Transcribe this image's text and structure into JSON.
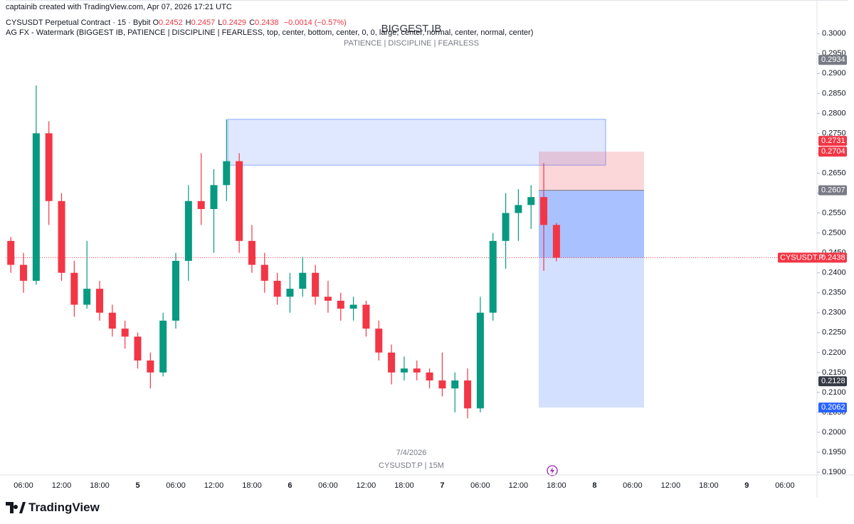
{
  "header": {
    "credit": "captainib created with TradingView.com, Apr 07, 2026 17:21 UTC"
  },
  "legend": {
    "symbol": "CYSUSDT Perpetual Contract · 15 · Bybit",
    "fields": [
      {
        "key": "O",
        "text": "0.2452"
      },
      {
        "key": "H",
        "text": "0.2457"
      },
      {
        "key": "L",
        "text": "0.2429"
      },
      {
        "key": "C",
        "text": "0.2438"
      }
    ],
    "change": "−0.0014 (−0.57%)",
    "indicator": "AG FX - Watermark (BIGGEST IB, PATIENCE  |  DISCIPLINE  |  FEARLESS, top, center, bottom, center, 0, 0, large, center, normal, center, normal, center)"
  },
  "watermark": {
    "title": "BIGGEST IB",
    "subtitle": "PATIENCE  |  DISCIPLINE  |  FEARLESS",
    "date": "7/4/2026",
    "symbol": "CYSUSDT.P | 15M"
  },
  "footer": {
    "brand": "TradingView"
  },
  "chart_data": {
    "type": "candlestick",
    "categories": [
      null,
      "06:00",
      null,
      null,
      "12:00",
      null,
      null,
      "18:00",
      null,
      null,
      "5",
      null,
      null,
      "06:00",
      null,
      null,
      "12:00",
      null,
      null,
      "18:00",
      null,
      null,
      "6",
      null,
      null,
      "06:00",
      null,
      null,
      "12:00",
      null,
      null,
      "18:00",
      null,
      null,
      "7",
      null,
      null,
      "06:00",
      null,
      null,
      "12:00",
      null,
      null,
      "18:00",
      null,
      null,
      "8",
      null,
      null,
      "06:00",
      null,
      null,
      "12:00",
      null,
      null,
      "18:00",
      null,
      null,
      "9",
      null,
      null,
      "06:00"
    ],
    "open": [
      0.248,
      0.242,
      0.238,
      0.275,
      0.258,
      0.24,
      0.232,
      0.236,
      0.23,
      0.226,
      0.224,
      0.218,
      0.215,
      0.228,
      0.243,
      0.258,
      0.256,
      0.262,
      0.268,
      0.248,
      0.242,
      0.238,
      0.234,
      0.236,
      0.24,
      0.234,
      0.233,
      0.231,
      0.232,
      0.226,
      0.22,
      0.215,
      0.216,
      0.215,
      0.213,
      0.211,
      0.213,
      0.206,
      0.23,
      0.248,
      0.255,
      0.257,
      0.259,
      0.252,
      null,
      null,
      null,
      null,
      null,
      null,
      null,
      null,
      null,
      null,
      null,
      null,
      null,
      null,
      null,
      null,
      null,
      null
    ],
    "high": [
      0.249,
      0.245,
      0.287,
      0.278,
      0.26,
      0.243,
      0.248,
      0.238,
      0.232,
      0.228,
      0.225,
      0.22,
      0.23,
      0.245,
      0.262,
      0.27,
      0.266,
      0.2785,
      0.27,
      0.252,
      0.245,
      0.24,
      0.24,
      0.244,
      0.242,
      0.238,
      0.235,
      0.234,
      0.233,
      0.228,
      0.222,
      0.219,
      0.218,
      0.216,
      0.22,
      0.215,
      0.216,
      0.234,
      0.25,
      0.26,
      0.261,
      0.262,
      0.2675,
      0.2525,
      null,
      null,
      null,
      null,
      null,
      null,
      null,
      null,
      null,
      null,
      null,
      null,
      null,
      null,
      null,
      null,
      null,
      null
    ],
    "low": [
      0.24,
      0.235,
      0.237,
      0.252,
      0.238,
      0.229,
      0.231,
      0.228,
      0.224,
      0.221,
      0.216,
      0.211,
      0.214,
      0.226,
      0.238,
      0.252,
      0.245,
      0.258,
      0.245,
      0.24,
      0.235,
      0.232,
      0.23,
      0.234,
      0.232,
      0.23,
      0.228,
      0.228,
      0.224,
      0.218,
      0.212,
      0.213,
      0.213,
      0.211,
      0.209,
      0.205,
      0.2035,
      0.205,
      0.228,
      0.241,
      0.248,
      0.251,
      0.2405,
      0.2429,
      null,
      null,
      null,
      null,
      null,
      null,
      null,
      null,
      null,
      null,
      null,
      null,
      null,
      null,
      null,
      null,
      null,
      null
    ],
    "close": [
      0.242,
      0.238,
      0.275,
      0.258,
      0.24,
      0.232,
      0.236,
      0.23,
      0.226,
      0.224,
      0.218,
      0.215,
      0.228,
      0.243,
      0.258,
      0.256,
      0.262,
      0.268,
      0.248,
      0.242,
      0.238,
      0.234,
      0.236,
      0.24,
      0.234,
      0.233,
      0.231,
      0.232,
      0.226,
      0.22,
      0.215,
      0.216,
      0.215,
      0.213,
      0.211,
      0.213,
      0.206,
      0.23,
      0.248,
      0.255,
      0.257,
      0.259,
      0.252,
      0.2438,
      null,
      null,
      null,
      null,
      null,
      null,
      null,
      null,
      null,
      null,
      null,
      null,
      null,
      null,
      null,
      null,
      null,
      null
    ],
    "up_color": "#089981",
    "down_color": "#f23645",
    "ylim": [
      0.1893,
      0.307
    ],
    "yticks": [
      {
        "value": 0.19,
        "label": "0.1900"
      },
      {
        "value": 0.195,
        "label": "0.1950"
      },
      {
        "value": 0.2,
        "label": "0.2000"
      },
      {
        "value": 0.205,
        "label": "0.2050"
      },
      {
        "value": 0.21,
        "label": "0.2100"
      },
      {
        "value": 0.215,
        "label": "0.2150"
      },
      {
        "value": 0.22,
        "label": "0.2200"
      },
      {
        "value": 0.225,
        "label": "0.2250"
      },
      {
        "value": 0.23,
        "label": "0.2300"
      },
      {
        "value": 0.235,
        "label": "0.2350"
      },
      {
        "value": 0.24,
        "label": "0.2400"
      },
      {
        "value": 0.245,
        "label": "0.2450"
      },
      {
        "value": 0.25,
        "label": "0.2500"
      },
      {
        "value": 0.255,
        "label": "0.2550"
      },
      {
        "value": 0.26,
        "label": "0.2600"
      },
      {
        "value": 0.265,
        "label": "0.2650"
      },
      {
        "value": 0.27,
        "label": "0.2700"
      },
      {
        "value": 0.275,
        "label": "0.2750"
      },
      {
        "value": 0.28,
        "label": "0.2800"
      },
      {
        "value": 0.285,
        "label": "0.2850"
      },
      {
        "value": 0.29,
        "label": "0.2900"
      },
      {
        "value": 0.295,
        "label": "0.2950"
      },
      {
        "value": 0.3,
        "label": "0.3000"
      }
    ],
    "grid": false,
    "zone": {
      "top": 0.2785,
      "bottom": 0.267,
      "color": "#2962ff"
    },
    "position": {
      "stop": 0.2704,
      "entry": 0.2607,
      "target": 0.2062
    },
    "last_price": {
      "value": 0.2438,
      "label": "0.2438",
      "symbol": "CYSUSDT.P",
      "color": "#f23645"
    },
    "price_labels": [
      {
        "value": 0.2934,
        "label": "0.2934",
        "color": "#787b86"
      },
      {
        "value": 0.2731,
        "label": "0.2731",
        "color": "#f23645"
      },
      {
        "value": 0.2704,
        "label": "0.2704",
        "color": "#f23645"
      },
      {
        "value": 0.2607,
        "label": "0.2607",
        "color": "#787b86"
      },
      {
        "value": 0.2128,
        "label": "0.2128",
        "color": "#363a45"
      },
      {
        "value": 0.2062,
        "label": "0.2062",
        "color": "#2962ff"
      }
    ]
  }
}
